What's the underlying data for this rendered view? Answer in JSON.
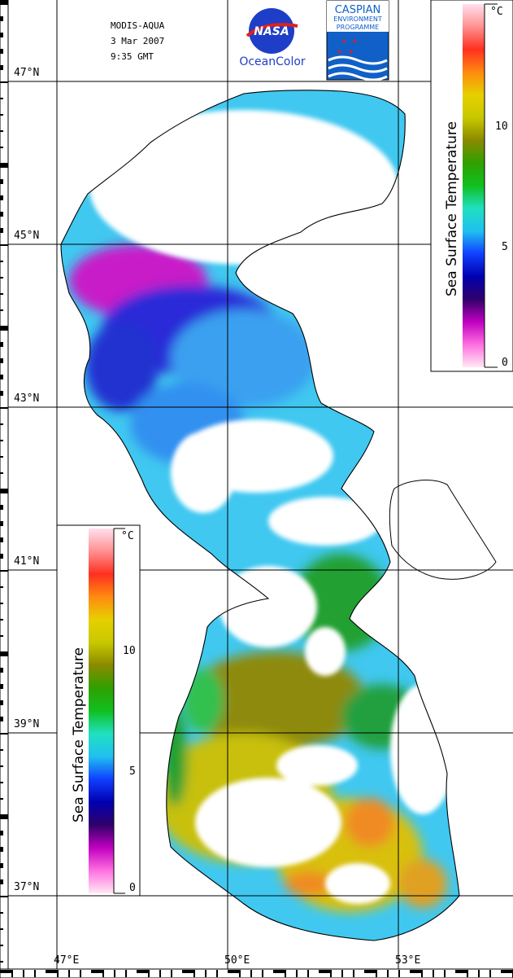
{
  "header": {
    "sensor": "MODIS-AQUA",
    "date": "3 Mar 2007",
    "time": "9:35 GMT"
  },
  "logos": {
    "nasa": {
      "wordmark": "NASA",
      "caption": "OceanColor"
    },
    "cep": {
      "line1": "CASPIAN",
      "line2": "ENVIRONMENT",
      "line3": "PROGRAMME"
    }
  },
  "latitude_labels": [
    "47°N",
    "45°N",
    "43°N",
    "41°N",
    "39°N",
    "37°N"
  ],
  "longitude_labels": [
    "47°E",
    "50°E",
    "53°E"
  ],
  "colorbar": {
    "title": "Sea Surface Temperature",
    "unit": "°C",
    "ticks": [
      "0",
      "5",
      "10"
    ],
    "range": [
      0,
      14
    ],
    "gradient_stops": [
      "#ffe8f4",
      "#ff6fe0",
      "#c000c0",
      "#30006a",
      "#0000b0",
      "#1040ff",
      "#20c0f0",
      "#20e0c0",
      "#10c020",
      "#30a000",
      "#8a8a00",
      "#c8c800",
      "#e6d000",
      "#ff8a10",
      "#ff3020",
      "#ff9090",
      "#ffe0ee"
    ]
  },
  "map_colors": {
    "cold_magenta": "#c020c0",
    "deep_blue": "#2030e0",
    "sky_blue": "#30a8f0",
    "cyan": "#40d8f0",
    "green": "#20a030",
    "olive": "#a09a10",
    "yellow": "#d8c810",
    "orange": "#f09020"
  }
}
